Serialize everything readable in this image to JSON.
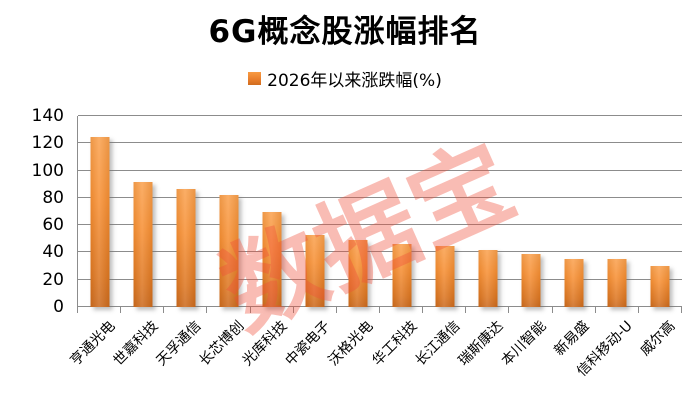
{
  "title": "6G概念股涨幅排名",
  "legend": {
    "label": "2026年以来涨跌幅(%)",
    "swatch_color": "#E87D2B"
  },
  "watermark_text": "数据宝",
  "colors": {
    "bar_top": "#FAA14E",
    "bar_bottom": "#CB691D",
    "gridline": "#8C8C8C",
    "watermark": "#F8ADA1",
    "text": "#000000",
    "background": "#FFFFFF"
  },
  "chart_data": {
    "type": "bar",
    "title": "6G概念股涨幅排名",
    "legend": [
      "2026年以来涨跌幅(%)"
    ],
    "legend_position": "top",
    "categories": [
      "亨通光电",
      "世嘉科技",
      "天孚通信",
      "长芯博创",
      "光库科技",
      "中瓷电子",
      "沃格光电",
      "华工科技",
      "长江通信",
      "瑞斯康达",
      "本川智能",
      "新易盛",
      "信科移动-U",
      "威尔高"
    ],
    "values": [
      124.5,
      92,
      86.5,
      82,
      70,
      52.5,
      49,
      46.5,
      45,
      41.5,
      39,
      35.5,
      35,
      30
    ],
    "xlabel": "",
    "ylabel": "",
    "ylim": [
      0,
      140
    ],
    "yticks": [
      0,
      20,
      40,
      60,
      80,
      100,
      120,
      140
    ],
    "grid": true
  }
}
